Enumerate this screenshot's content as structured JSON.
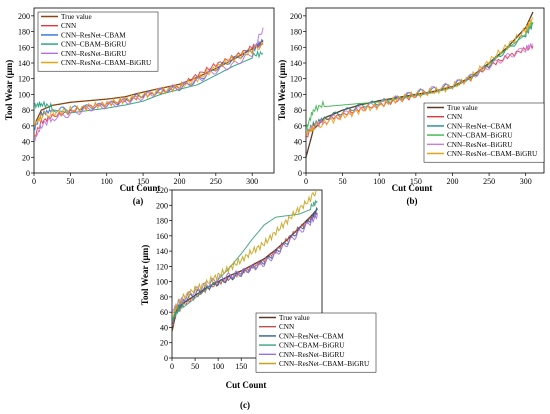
{
  "chart_data": [
    {
      "type": "line",
      "panel_label": "(a)",
      "xlabel": "Cut Count",
      "ylabel": "Tool Wear (μm)",
      "xlim": [
        0,
        330
      ],
      "ylim": [
        0,
        210
      ],
      "xticks": [
        "0",
        "50",
        "100",
        "150",
        "200",
        "250",
        "300"
      ],
      "yticks": [
        "0",
        "20",
        "40",
        "60",
        "80",
        "100",
        "120",
        "140",
        "160",
        "180",
        "200"
      ],
      "legend_position": "top-left",
      "series": [
        {
          "name": "True value",
          "color": "#8B4513",
          "x": [
            0,
            10,
            25,
            50,
            75,
            100,
            125,
            150,
            175,
            200,
            225,
            250,
            275,
            300,
            315
          ],
          "y": [
            60,
            80,
            86,
            90,
            92,
            94,
            97,
            103,
            108,
            113,
            122,
            133,
            145,
            158,
            168
          ]
        },
        {
          "name": "CNN",
          "color": "#e8333a",
          "x": [
            0,
            10,
            25,
            50,
            75,
            100,
            125,
            150,
            175,
            200,
            225,
            250,
            275,
            300,
            315
          ],
          "y": [
            45,
            65,
            72,
            78,
            85,
            88,
            92,
            98,
            103,
            110,
            125,
            138,
            148,
            160,
            165
          ]
        },
        {
          "name": "CNN–ResNet–CBAM",
          "color": "#2a6fdb",
          "x": [
            0,
            10,
            25,
            50,
            75,
            100,
            125,
            150,
            175,
            200,
            225,
            250,
            275,
            300,
            315
          ],
          "y": [
            55,
            75,
            80,
            82,
            84,
            87,
            92,
            100,
            104,
            108,
            118,
            133,
            145,
            156,
            168
          ]
        },
        {
          "name": "CNN–CBAM–BiGRU",
          "color": "#1f9e7a",
          "x": [
            0,
            10,
            25,
            50,
            75,
            100,
            125,
            150,
            175,
            200,
            225,
            250,
            275,
            300,
            315
          ],
          "y": [
            85,
            88,
            84,
            80,
            83,
            86,
            90,
            95,
            104,
            110,
            116,
            128,
            140,
            150,
            152
          ]
        },
        {
          "name": "CNN–ResNet–BiGRU",
          "color": "#b86ee0",
          "x": [
            0,
            10,
            25,
            50,
            75,
            100,
            125,
            150,
            175,
            200,
            225,
            250,
            275,
            300,
            315
          ],
          "y": [
            40,
            60,
            70,
            75,
            82,
            86,
            90,
            97,
            105,
            110,
            118,
            130,
            138,
            152,
            185
          ]
        },
        {
          "name": "CNN–ResNet–CBAM–BiGRU",
          "color": "#e8a317",
          "x": [
            0,
            10,
            25,
            50,
            75,
            100,
            125,
            150,
            175,
            200,
            225,
            250,
            275,
            300,
            315
          ],
          "y": [
            62,
            72,
            76,
            80,
            84,
            88,
            93,
            99,
            104,
            110,
            120,
            134,
            146,
            155,
            165
          ]
        }
      ]
    },
    {
      "type": "line",
      "panel_label": "(b)",
      "xlabel": "Cut Count",
      "ylabel": "Tool Wear (μm)",
      "xlim": [
        0,
        325
      ],
      "ylim": [
        0,
        210
      ],
      "xticks": [
        "0",
        "50",
        "100",
        "150",
        "200",
        "250",
        "300"
      ],
      "yticks": [
        "0",
        "20",
        "40",
        "60",
        "80",
        "100",
        "120",
        "140",
        "160",
        "180",
        "200"
      ],
      "legend_position": "bottom-right",
      "series": [
        {
          "name": "True value",
          "color": "#5a3a2a",
          "x": [
            0,
            10,
            25,
            50,
            75,
            100,
            125,
            150,
            175,
            200,
            225,
            250,
            275,
            300,
            310
          ],
          "y": [
            20,
            55,
            70,
            80,
            87,
            92,
            96,
            100,
            104,
            110,
            122,
            140,
            160,
            185,
            205
          ]
        },
        {
          "name": "CNN",
          "color": "#e8333a",
          "x": [
            0,
            10,
            25,
            50,
            75,
            100,
            125,
            150,
            175,
            200,
            225,
            250,
            275,
            300,
            310
          ],
          "y": [
            45,
            60,
            68,
            74,
            82,
            86,
            92,
            98,
            104,
            110,
            120,
            136,
            148,
            158,
            162
          ]
        },
        {
          "name": "CNN–ResNet–CBAM",
          "color": "#1f8a8a",
          "x": [
            0,
            10,
            25,
            50,
            75,
            100,
            125,
            150,
            175,
            200,
            225,
            250,
            275,
            300,
            310
          ],
          "y": [
            50,
            62,
            70,
            78,
            86,
            90,
            95,
            102,
            106,
            112,
            122,
            138,
            158,
            176,
            190
          ]
        },
        {
          "name": "CNN–CBAM–BiGRU",
          "color": "#3cb44b",
          "x": [
            0,
            10,
            25,
            50,
            75,
            100,
            125,
            150,
            175,
            200,
            225,
            250,
            275,
            300,
            310
          ],
          "y": [
            55,
            80,
            88,
            90,
            92,
            94,
            98,
            102,
            106,
            112,
            124,
            142,
            162,
            180,
            192
          ]
        },
        {
          "name": "CNN–ResNet–BiGRU",
          "color": "#c77be0",
          "x": [
            0,
            10,
            25,
            50,
            75,
            100,
            125,
            150,
            175,
            200,
            225,
            250,
            275,
            300,
            310
          ],
          "y": [
            52,
            60,
            66,
            74,
            82,
            88,
            95,
            102,
            107,
            112,
            122,
            136,
            148,
            158,
            164
          ]
        },
        {
          "name": "CNN–ResNet–CBAM–BiGRU",
          "color": "#e8a317",
          "x": [
            0,
            10,
            25,
            50,
            75,
            100,
            125,
            150,
            175,
            200,
            225,
            250,
            275,
            300,
            310
          ],
          "y": [
            50,
            58,
            64,
            72,
            80,
            86,
            94,
            100,
            104,
            110,
            122,
            142,
            162,
            182,
            198
          ]
        }
      ]
    },
    {
      "type": "line",
      "panel_label": "(c)",
      "xlabel": "Cut Count",
      "ylabel": "Tool Wear (μm)",
      "xlim": [
        0,
        325
      ],
      "ylim": [
        0,
        220
      ],
      "xticks": [
        "0",
        "50",
        "100",
        "150",
        "200",
        "250",
        "300"
      ],
      "yticks": [
        "0",
        "20",
        "40",
        "60",
        "80",
        "100",
        "120",
        "140",
        "160",
        "180",
        "200",
        "220"
      ],
      "legend_position": "bottom-right",
      "series": [
        {
          "name": "True value",
          "color": "#5a3a2a",
          "x": [
            0,
            10,
            25,
            50,
            75,
            100,
            125,
            150,
            175,
            200,
            225,
            250,
            275,
            300,
            315
          ],
          "y": [
            35,
            62,
            72,
            82,
            92,
            100,
            108,
            114,
            122,
            130,
            142,
            155,
            170,
            185,
            195
          ]
        },
        {
          "name": "CNN",
          "color": "#c0504d",
          "x": [
            0,
            10,
            25,
            50,
            75,
            100,
            125,
            150,
            175,
            200,
            225,
            250,
            275,
            300,
            315
          ],
          "y": [
            40,
            60,
            70,
            80,
            90,
            98,
            104,
            112,
            120,
            128,
            140,
            156,
            170,
            182,
            190
          ]
        },
        {
          "name": "CNN–ResNet–CBAM",
          "color": "#2c5f8a",
          "x": [
            0,
            10,
            25,
            50,
            75,
            100,
            125,
            150,
            175,
            200,
            225,
            250,
            275,
            300,
            315
          ],
          "y": [
            45,
            65,
            75,
            84,
            92,
            98,
            104,
            110,
            118,
            126,
            138,
            152,
            168,
            180,
            195
          ]
        },
        {
          "name": "CNN–CBAM–BiGRU",
          "color": "#3aa07a",
          "x": [
            0,
            10,
            25,
            50,
            75,
            100,
            125,
            150,
            175,
            200,
            225,
            250,
            275,
            300,
            315
          ],
          "y": [
            50,
            60,
            70,
            82,
            94,
            106,
            122,
            140,
            160,
            178,
            188,
            190,
            192,
            198,
            205
          ]
        },
        {
          "name": "CNN–ResNet–BiGRU",
          "color": "#9b6fe0",
          "x": [
            0,
            10,
            25,
            50,
            75,
            100,
            125,
            150,
            175,
            200,
            225,
            250,
            275,
            300,
            315
          ],
          "y": [
            60,
            70,
            78,
            88,
            96,
            104,
            108,
            112,
            118,
            124,
            136,
            150,
            164,
            178,
            188
          ]
        },
        {
          "name": "CNN–ResNet–CBAM–BiGRU",
          "color": "#c9a21a",
          "x": [
            0,
            10,
            25,
            50,
            75,
            100,
            125,
            150,
            175,
            200,
            225,
            250,
            275,
            300,
            315
          ],
          "y": [
            55,
            68,
            80,
            90,
            98,
            108,
            118,
            128,
            140,
            150,
            165,
            180,
            195,
            208,
            222
          ]
        }
      ]
    }
  ]
}
